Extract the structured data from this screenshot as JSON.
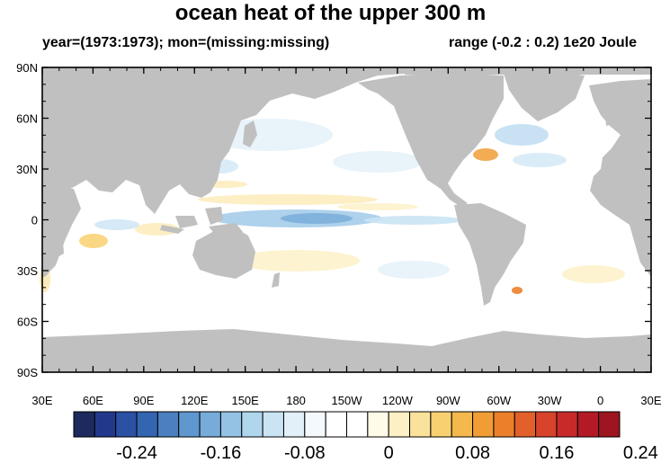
{
  "title": "ocean heat of the upper 300 m",
  "subtitle_left": "year=(1973:1973); mon=(missing:missing)",
  "subtitle_right": "range (-0.2 : 0.2) 1e20 Joule",
  "map": {
    "projection": "cylindrical-equidistant",
    "lon_range": [
      30,
      390
    ],
    "lat_range": [
      -90,
      90
    ],
    "land_color": "#c0c0c0",
    "ocean_color": "#ffffff",
    "lat_ticks": [
      "90N",
      "60N",
      "30N",
      "0",
      "30S",
      "60S",
      "90S"
    ],
    "lon_ticks": [
      "30E",
      "60E",
      "90E",
      "120E",
      "150E",
      "180",
      "150W",
      "120W",
      "90W",
      "60W",
      "30W",
      "0",
      "30E"
    ]
  },
  "colorbar": {
    "colors": [
      "#1d2a5e",
      "#22398b",
      "#2a51a3",
      "#3465b0",
      "#4a7fc0",
      "#5f97cf",
      "#77abda",
      "#93c2e5",
      "#b0d6ee",
      "#cae4f4",
      "#e2f0f9",
      "#f4f9fd",
      "#ffffff",
      "#ffffff",
      "#fffbe8",
      "#fdf0c4",
      "#fbe29c",
      "#f8d06f",
      "#f5b84d",
      "#f19d36",
      "#ec7f2a",
      "#e2612a",
      "#d7432b",
      "#c82a29",
      "#b31a26",
      "#9c1520"
    ],
    "labels": [
      "-0.24",
      "-0.16",
      "-0.08",
      "0",
      "0.08",
      "0.16",
      "0.24"
    ]
  }
}
